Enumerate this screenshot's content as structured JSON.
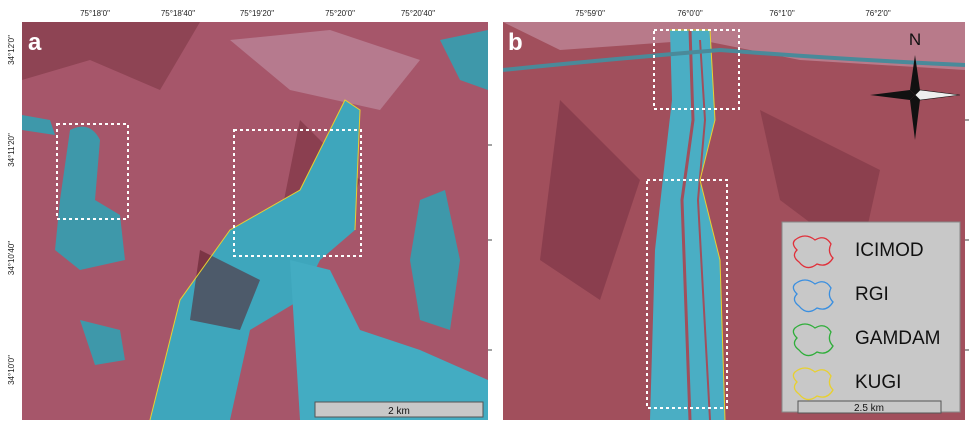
{
  "panels": [
    {
      "label": "a",
      "top_coords": [
        "75°18'0\"",
        "75°18'40\"",
        "75°19'20\"",
        "75°20'0\"",
        "75°20'40\""
      ],
      "left_coords": [
        "34°12'0\"",
        "34°11'20\"",
        "34°10'40\"",
        "34°10'0\""
      ],
      "scale_bar": "2 km"
    },
    {
      "label": "b",
      "top_coords": [
        "75°59'0\"",
        "76°0'0\"",
        "76°1'0\"",
        "76°2'0\""
      ],
      "north": "N",
      "scale_bar": "2.5 km",
      "legend": [
        {
          "name": "ICIMOD",
          "color": "#e0303a"
        },
        {
          "name": "RGI",
          "color": "#3a8fe0"
        },
        {
          "name": "GAMDAM",
          "color": "#2fae3a"
        },
        {
          "name": "KUGI",
          "color": "#e8d030"
        }
      ]
    }
  ]
}
